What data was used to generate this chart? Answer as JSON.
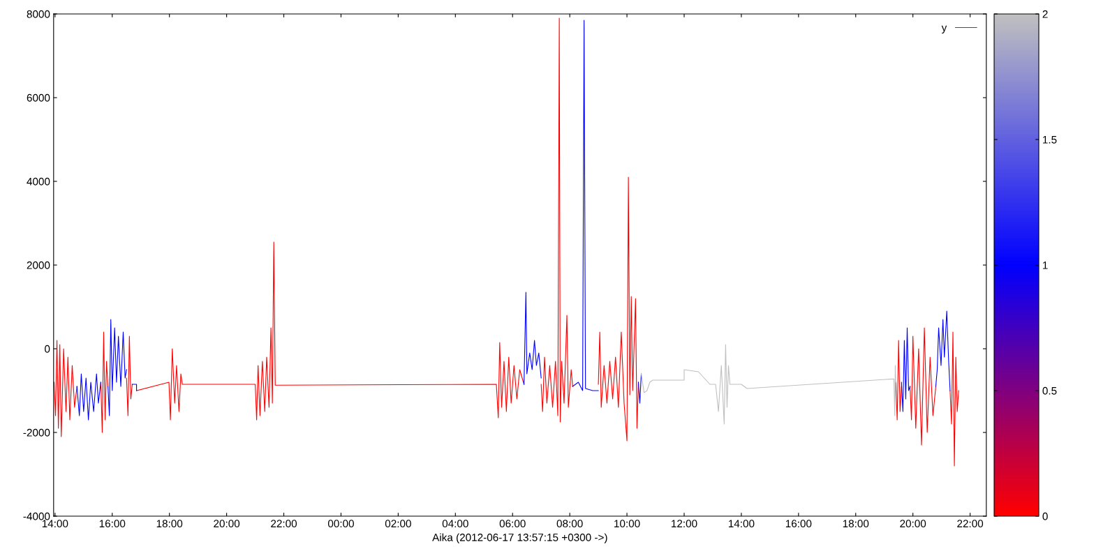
{
  "chart_data": {
    "type": "line",
    "xlabel": "Aika (2012-06-17 13:57:15 +0300 ->)",
    "xlim": [
      "2012-06-17T13:57",
      "2012-06-18T22:34"
    ],
    "ylim": [
      -4000,
      8000
    ],
    "yticks": [
      -4000,
      -2000,
      0,
      2000,
      4000,
      6000,
      8000
    ],
    "xticks": [
      {
        "value": "2012-06-17T14:00",
        "label": "14:00"
      },
      {
        "value": "2012-06-17T16:00",
        "label": "16:00"
      },
      {
        "value": "2012-06-17T18:00",
        "label": "18:00"
      },
      {
        "value": "2012-06-17T20:00",
        "label": "20:00"
      },
      {
        "value": "2012-06-17T22:00",
        "label": "22:00"
      },
      {
        "value": "2012-06-18T00:00",
        "label": "00:00"
      },
      {
        "value": "2012-06-18T02:00",
        "label": "02:00"
      },
      {
        "value": "2012-06-18T04:00",
        "label": "04:00"
      },
      {
        "value": "2012-06-18T06:00",
        "label": "06:00"
      },
      {
        "value": "2012-06-18T08:00",
        "label": "08:00"
      },
      {
        "value": "2012-06-18T10:00",
        "label": "10:00"
      },
      {
        "value": "2012-06-18T12:00",
        "label": "12:00"
      },
      {
        "value": "2012-06-18T14:00",
        "label": "14:00"
      },
      {
        "value": "2012-06-18T16:00",
        "label": "16:00"
      },
      {
        "value": "2012-06-18T18:00",
        "label": "18:00"
      },
      {
        "value": "2012-06-18T20:00",
        "label": "20:00"
      },
      {
        "value": "2012-06-18T22:00",
        "label": "22:00"
      }
    ],
    "clim": [
      0,
      2
    ],
    "cticks": [
      0,
      0.5,
      1,
      1.5,
      2
    ],
    "legend": "top right",
    "grid": false,
    "series": [
      {
        "name": "y",
        "color": "#ff0000",
        "x": [
          "2012-06-17T13:58",
          "2012-06-17T14:01",
          "2012-06-17T14:04",
          "2012-06-17T14:07",
          "2012-06-17T14:10",
          "2012-06-17T14:13",
          "2012-06-17T14:18",
          "2012-06-17T14:23",
          "2012-06-17T14:27",
          "2012-06-17T14:31",
          "2012-06-17T14:36",
          "2012-06-17T14:41",
          "2012-06-17T14:46",
          "2012-06-17T15:12",
          "2012-06-17T15:36",
          "2012-06-17T15:39",
          "2012-06-17T15:42",
          "2012-06-17T15:45",
          "2012-06-17T15:48",
          "2012-06-17T15:51",
          "2012-06-17T16:12",
          "2012-06-17T16:30",
          "2012-06-17T16:33",
          "2012-06-17T16:36",
          "2012-06-17T16:39",
          "2012-06-17T16:42",
          "2012-06-17T16:46",
          "2012-06-17T16:51",
          "2012-06-17T17:59",
          "2012-06-17T18:02",
          "2012-06-17T18:06",
          "2012-06-17T18:11",
          "2012-06-17T18:15",
          "2012-06-17T18:20",
          "2012-06-17T18:24",
          "2012-06-17T18:27",
          "2012-06-17T19:06",
          "2012-06-17T21:00",
          "2012-06-17T21:03",
          "2012-06-17T21:06",
          "2012-06-17T21:10",
          "2012-06-17T21:15",
          "2012-06-17T21:20",
          "2012-06-17T21:24",
          "2012-06-17T21:29",
          "2012-06-17T21:33",
          "2012-06-17T21:36",
          "2012-06-17T21:39",
          "2012-06-17T21:42",
          "2012-06-18T05:26",
          "2012-06-18T05:30",
          "2012-06-18T05:33",
          "2012-06-18T05:37",
          "2012-06-18T05:42",
          "2012-06-18T05:47",
          "2012-06-18T05:52",
          "2012-06-18T05:57",
          "2012-06-18T06:03",
          "2012-06-18T06:09",
          "2012-06-18T06:15",
          "2012-06-18T06:24",
          "2012-06-18T06:42",
          "2012-06-18T07:00",
          "2012-06-18T07:03",
          "2012-06-18T07:07",
          "2012-06-18T07:12",
          "2012-06-18T07:18",
          "2012-06-18T07:24",
          "2012-06-18T07:30",
          "2012-06-18T07:35",
          "2012-06-18T07:38",
          "2012-06-18T07:40",
          "2012-06-18T07:43",
          "2012-06-18T07:48",
          "2012-06-18T07:54",
          "2012-06-18T07:57",
          "2012-06-18T08:03",
          "2012-06-18T08:06",
          "2012-06-18T08:36",
          "2012-06-18T09:00",
          "2012-06-18T09:03",
          "2012-06-18T09:06",
          "2012-06-18T09:12",
          "2012-06-18T09:18",
          "2012-06-18T09:24",
          "2012-06-18T09:30",
          "2012-06-18T09:36",
          "2012-06-18T09:42",
          "2012-06-18T09:48",
          "2012-06-18T09:54",
          "2012-06-18T10:00",
          "2012-06-18T10:03",
          "2012-06-18T10:06",
          "2012-06-18T10:09",
          "2012-06-18T10:12",
          "2012-06-18T10:18",
          "2012-06-18T10:21",
          "2012-06-18T10:24",
          "2012-06-18T15:00",
          "2012-06-18T19:24",
          "2012-06-18T19:27",
          "2012-06-18T19:30",
          "2012-06-18T19:33",
          "2012-06-18T19:36",
          "2012-06-18T19:45",
          "2012-06-18T19:54",
          "2012-06-18T19:57",
          "2012-06-18T20:00",
          "2012-06-18T20:06",
          "2012-06-18T20:12",
          "2012-06-18T20:18",
          "2012-06-18T20:24",
          "2012-06-18T20:30",
          "2012-06-18T20:36",
          "2012-06-18T20:42",
          "2012-06-18T20:48",
          "2012-06-18T21:00",
          "2012-06-18T21:18",
          "2012-06-18T21:21",
          "2012-06-18T21:24",
          "2012-06-18T21:27",
          "2012-06-18T21:30",
          "2012-06-18T21:33",
          "2012-06-18T21:36"
        ],
        "values": [
          -800,
          -1600,
          200,
          -1900,
          100,
          -2100,
          0,
          -1500,
          -200,
          -1700,
          -400,
          -1400,
          -900,
          null,
          -800,
          -2000,
          400,
          -1700,
          -300,
          -900,
          null,
          -700,
          -1600,
          300,
          -1200,
          -850,
          null,
          -1000,
          -800,
          -1700,
          0,
          -1300,
          -400,
          -1500,
          -600,
          -850,
          -850,
          -850,
          -1700,
          -400,
          -1600,
          -300,
          -1500,
          -200,
          -1400,
          500,
          -1300,
          2550,
          -870,
          -850,
          -1650,
          150,
          -1400,
          -300,
          -1500,
          -200,
          -1300,
          -400,
          -1200,
          -500,
          -850,
          null,
          -850,
          -1500,
          -200,
          -1300,
          -400,
          -1400,
          -300,
          -1600,
          7900,
          -1750,
          -300,
          -1300,
          800,
          -1400,
          -500,
          -900,
          null,
          -850,
          400,
          -1400,
          -400,
          -1300,
          -300,
          -1200,
          -200,
          -1400,
          400,
          -1300,
          -2200,
          4100,
          -1100,
          1250,
          -1000,
          1200,
          -1900,
          -800,
          null,
          -800,
          -1700,
          200,
          -1500,
          -900,
          null,
          -900,
          -1700,
          300,
          -1900,
          0,
          -2300,
          500,
          -2000,
          -200,
          -1600,
          -900,
          null,
          -1000,
          -1800,
          400,
          -2800,
          -200,
          -1500,
          -1000
        ]
      },
      {
        "color": "#0000ff",
        "x": [
          "2012-06-17T14:46",
          "2012-06-17T14:51",
          "2012-06-17T14:55",
          "2012-06-17T15:00",
          "2012-06-17T15:05",
          "2012-06-17T15:10",
          "2012-06-17T15:15",
          "2012-06-17T15:21",
          "2012-06-17T15:27",
          "2012-06-17T15:31",
          "2012-06-17T15:36",
          "2012-06-17T15:42",
          "2012-06-17T15:51",
          "2012-06-17T15:54",
          "2012-06-17T15:57",
          "2012-06-17T16:00",
          "2012-06-17T16:05",
          "2012-06-17T16:09",
          "2012-06-17T16:13",
          "2012-06-17T16:18",
          "2012-06-17T16:23",
          "2012-06-17T16:27",
          "2012-06-17T16:30",
          "2012-06-17T16:36",
          "2012-06-17T16:42",
          "2012-06-17T16:51",
          "2012-06-17T16:51",
          "2012-06-17T20:00",
          "2012-06-18T06:24",
          "2012-06-18T06:28",
          "2012-06-18T06:30",
          "2012-06-18T06:36",
          "2012-06-18T06:41",
          "2012-06-18T06:46",
          "2012-06-18T06:50",
          "2012-06-18T06:55",
          "2012-06-18T07:00",
          "2012-06-18T07:30",
          "2012-06-18T08:06",
          "2012-06-18T08:18",
          "2012-06-18T08:27",
          "2012-06-18T08:30",
          "2012-06-18T08:33",
          "2012-06-18T08:48",
          "2012-06-18T09:00",
          "2012-06-18T10:12",
          "2012-06-18T10:24",
          "2012-06-18T10:27",
          "2012-06-18T10:30",
          "2012-06-18T16:00",
          "2012-06-18T19:36",
          "2012-06-18T19:39",
          "2012-06-18T19:42",
          "2012-06-18T19:45",
          "2012-06-18T19:48",
          "2012-06-18T19:51",
          "2012-06-18T19:54",
          "2012-06-18T20:18",
          "2012-06-18T20:48",
          "2012-06-18T20:51",
          "2012-06-18T20:54",
          "2012-06-18T20:59",
          "2012-06-18T21:03",
          "2012-06-18T21:06",
          "2012-06-18T21:11",
          "2012-06-18T21:15",
          "2012-06-18T21:18"
        ],
        "values": [
          -900,
          -1600,
          -600,
          -1500,
          -700,
          -1700,
          -800,
          -1500,
          -600,
          -1300,
          -800,
          null,
          -900,
          -1600,
          700,
          -1000,
          500,
          -800,
          300,
          -900,
          400,
          -700,
          -500,
          null,
          -850,
          -850,
          -1000,
          null,
          -850,
          1350,
          -600,
          -100,
          -500,
          200,
          -400,
          -100,
          -700,
          null,
          -900,
          -800,
          -1000,
          7850,
          -950,
          -1000,
          -1000,
          null,
          -800,
          -1300,
          -600,
          null,
          -800,
          -1500,
          200,
          -1200,
          500,
          -1000,
          -900,
          null,
          -900,
          -500,
          500,
          -400,
          700,
          -200,
          900,
          -300,
          -1000
        ]
      },
      {
        "color": "#c0c0c0",
        "x": [
          "2012-06-18T10:30",
          "2012-06-18T10:36",
          "2012-06-18T10:42",
          "2012-06-18T10:48",
          "2012-06-18T10:54",
          "2012-06-18T11:00",
          "2012-06-18T12:00",
          "2012-06-18T12:00",
          "2012-06-18T12:30",
          "2012-06-18T12:42",
          "2012-06-18T12:54",
          "2012-06-18T13:06",
          "2012-06-18T13:12",
          "2012-06-18T13:18",
          "2012-06-18T13:24",
          "2012-06-18T13:27",
          "2012-06-18T13:30",
          "2012-06-18T13:33",
          "2012-06-18T13:36",
          "2012-06-18T14:00",
          "2012-06-18T14:12",
          "2012-06-18T19:20",
          "2012-06-18T19:22",
          "2012-06-18T19:23",
          "2012-06-18T19:24"
        ],
        "values": [
          -600,
          -1050,
          -1000,
          -800,
          -750,
          -750,
          -750,
          -500,
          -550,
          -700,
          -850,
          -850,
          -1500,
          -400,
          -1800,
          100,
          -1400,
          -400,
          -850,
          -850,
          -950,
          -720,
          -1600,
          -400,
          -800
        ]
      }
    ]
  }
}
